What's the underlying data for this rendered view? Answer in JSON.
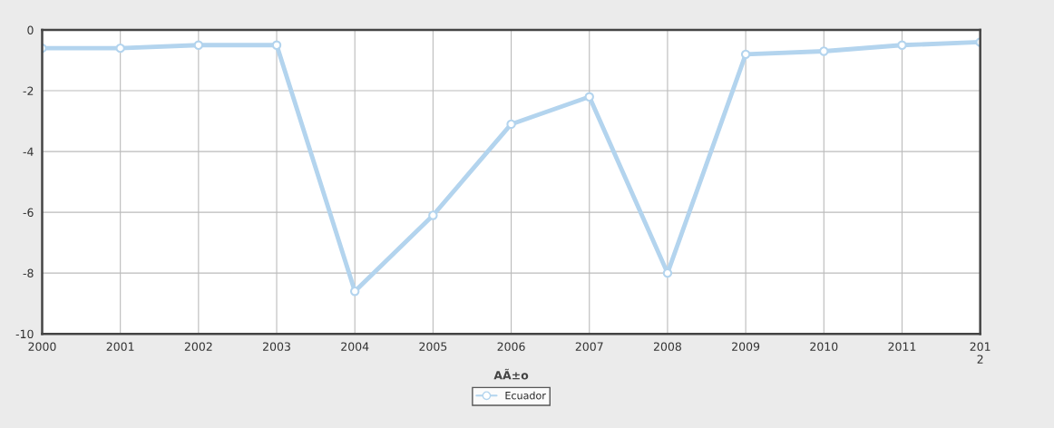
{
  "chart_data": {
    "type": "line",
    "xlabel": "AÃ±o",
    "x": [
      2000,
      2001,
      2002,
      2003,
      2004,
      2005,
      2006,
      2007,
      2008,
      2009,
      2010,
      2011,
      2012
    ],
    "series": [
      {
        "name": "Ecuador",
        "color": "#b3d4ee",
        "values": [
          -0.6,
          -0.6,
          -0.5,
          -0.5,
          -8.6,
          -6.1,
          -3.1,
          -2.2,
          -8.0,
          -0.8,
          -0.7,
          -0.5,
          -0.4
        ]
      }
    ],
    "xlim": [
      2000,
      2012
    ],
    "xticks": [
      2000,
      2001,
      2002,
      2003,
      2004,
      2005,
      2006,
      2007,
      2008,
      2009,
      2010,
      2011,
      {
        "value": 2012,
        "label": "201\n2"
      }
    ],
    "ylim": [
      -10,
      0
    ],
    "yticks": [
      -10,
      -8,
      -6,
      -4,
      -2,
      0
    ],
    "grid": true,
    "legend": "bottom",
    "marker": "circle",
    "line_style": "solid"
  }
}
